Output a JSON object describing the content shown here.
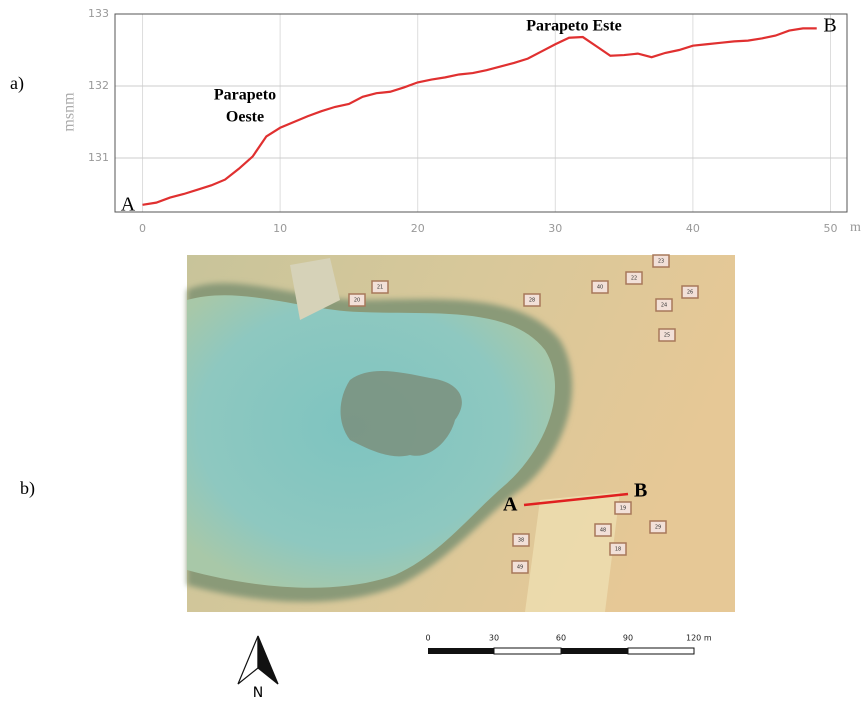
{
  "labels": {
    "a": "a)",
    "b": "b)"
  },
  "chart_data": {
    "type": "line",
    "ylabel": "msnm",
    "xunit": "m",
    "color": "#e03030",
    "x": [
      0,
      1,
      2,
      3,
      4,
      5,
      6,
      7,
      8,
      9,
      10,
      11,
      12,
      13,
      14,
      15,
      16,
      17,
      18,
      19,
      20,
      21,
      22,
      23,
      24,
      25,
      26,
      27,
      28,
      29,
      30,
      31,
      32,
      33,
      34,
      35,
      36,
      37,
      38,
      39,
      40,
      41,
      42,
      43,
      44,
      45,
      46,
      47,
      48,
      49
    ],
    "values": [
      130.35,
      130.38,
      130.45,
      130.5,
      130.56,
      130.62,
      130.7,
      130.85,
      131.02,
      131.3,
      131.42,
      131.5,
      131.58,
      131.65,
      131.71,
      131.75,
      131.85,
      131.9,
      131.92,
      131.98,
      132.05,
      132.09,
      132.12,
      132.16,
      132.18,
      132.22,
      132.27,
      132.32,
      132.38,
      132.48,
      132.58,
      132.67,
      132.68,
      132.55,
      132.42,
      132.43,
      132.45,
      132.4,
      132.46,
      132.5,
      132.56,
      132.58,
      132.6,
      132.62,
      132.63,
      132.66,
      132.7,
      132.77,
      132.8,
      132.8
    ],
    "annotations": [
      {
        "lines": [
          "Parapeto",
          "Oeste"
        ]
      },
      {
        "lines": [
          "Parapeto Este"
        ]
      }
    ],
    "end_labels": [
      "A",
      "B"
    ],
    "xlim": [
      -2,
      51.2
    ],
    "ylim": [
      130.25,
      133
    ],
    "xticks": [
      0,
      10,
      20,
      30,
      40,
      50
    ],
    "yticks": [
      131,
      132,
      133
    ],
    "grid": true
  },
  "map": {
    "ends": [
      "A",
      "B"
    ],
    "scale": [
      "0",
      "30",
      "60",
      "90",
      "120 m"
    ],
    "north": "N",
    "buildings": [
      "20",
      "21",
      "22",
      "23",
      "24",
      "25",
      "26",
      "28",
      "40",
      "19",
      "38",
      "48",
      "49",
      "18",
      "29"
    ]
  }
}
